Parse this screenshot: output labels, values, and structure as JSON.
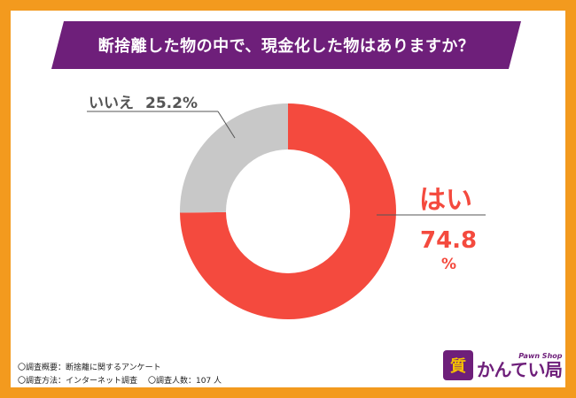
{
  "title": "断捨離した物の中で、現金化した物はありますか？",
  "chart_data": {
    "type": "pie",
    "slices": [
      {
        "label": "はい",
        "value": 74.8,
        "unit": "%",
        "color": "#f44a3e"
      },
      {
        "label": "いいえ",
        "value": 25.2,
        "unit": "%",
        "color": "#c8c8c8"
      }
    ]
  },
  "labels": {
    "no_label": "いいえ",
    "no_value": "25.2%",
    "yes_label": "はい",
    "yes_value": "74.8",
    "yes_unit": "%"
  },
  "footnotes": {
    "line1": "〇調査概要：断捨離に関するアンケート",
    "line2a": "〇調査方法：インターネット調査",
    "line2b": "〇調査人数：107 人"
  },
  "logo": {
    "mark": "質",
    "sub": "Pawn Shop",
    "name": "かんてい局"
  },
  "colors": {
    "accent": "#6e1f7a",
    "border": "#f39a1e",
    "yes": "#f44a3e",
    "no": "#c8c8c8"
  }
}
